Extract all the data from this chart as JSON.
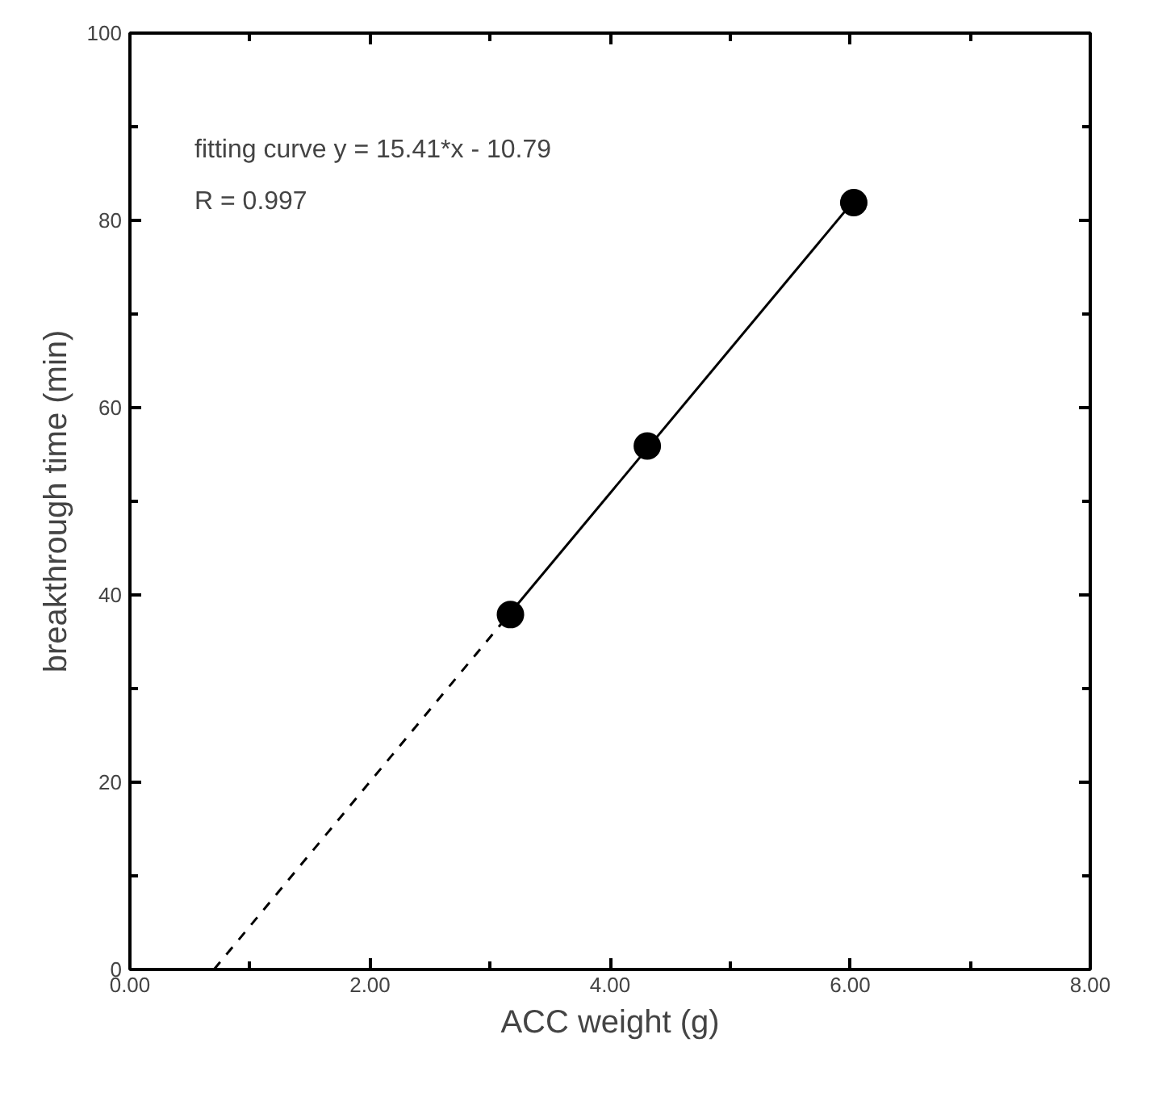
{
  "chart_data": {
    "type": "scatter",
    "xlabel": "ACC weight (g)",
    "ylabel": "breakthrough time (min)",
    "annotations": [
      "fitting curve y = 15.41*x - 10.79",
      "R = 0.997"
    ],
    "xlim": [
      0,
      8
    ],
    "ylim": [
      0,
      100
    ],
    "xticks": [
      {
        "value": 0,
        "label": "0.00"
      },
      {
        "value": 1,
        "label": null
      },
      {
        "value": 2,
        "label": "2.00"
      },
      {
        "value": 3,
        "label": null
      },
      {
        "value": 4,
        "label": "4.00"
      },
      {
        "value": 5,
        "label": null
      },
      {
        "value": 6,
        "label": "6.00"
      },
      {
        "value": 7,
        "label": null
      },
      {
        "value": 8,
        "label": "8.00"
      }
    ],
    "yticks": [
      0,
      {
        "value": 10,
        "label": null
      },
      20,
      {
        "value": 30,
        "label": null
      },
      40,
      {
        "value": 50,
        "label": null
      },
      60,
      {
        "value": 70,
        "label": null
      },
      80,
      {
        "value": 90,
        "label": null
      },
      100
    ],
    "grid": false,
    "series": [
      {
        "color": "#000000",
        "marker": "circle",
        "x": [
          3.17,
          4.31,
          6.03
        ],
        "values": [
          37.9,
          55.9,
          81.9
        ]
      },
      {
        "type": "line",
        "color": "#000000",
        "line_style": "solid",
        "marker": "none",
        "x": [
          3.17,
          6.03
        ],
        "values": [
          38.1,
          82.1
        ]
      },
      {
        "type": "line",
        "color": "#000000",
        "line_style": "dashed",
        "marker": "none",
        "x": [
          0.7,
          3.17
        ],
        "values": [
          0,
          38.1
        ]
      }
    ]
  }
}
